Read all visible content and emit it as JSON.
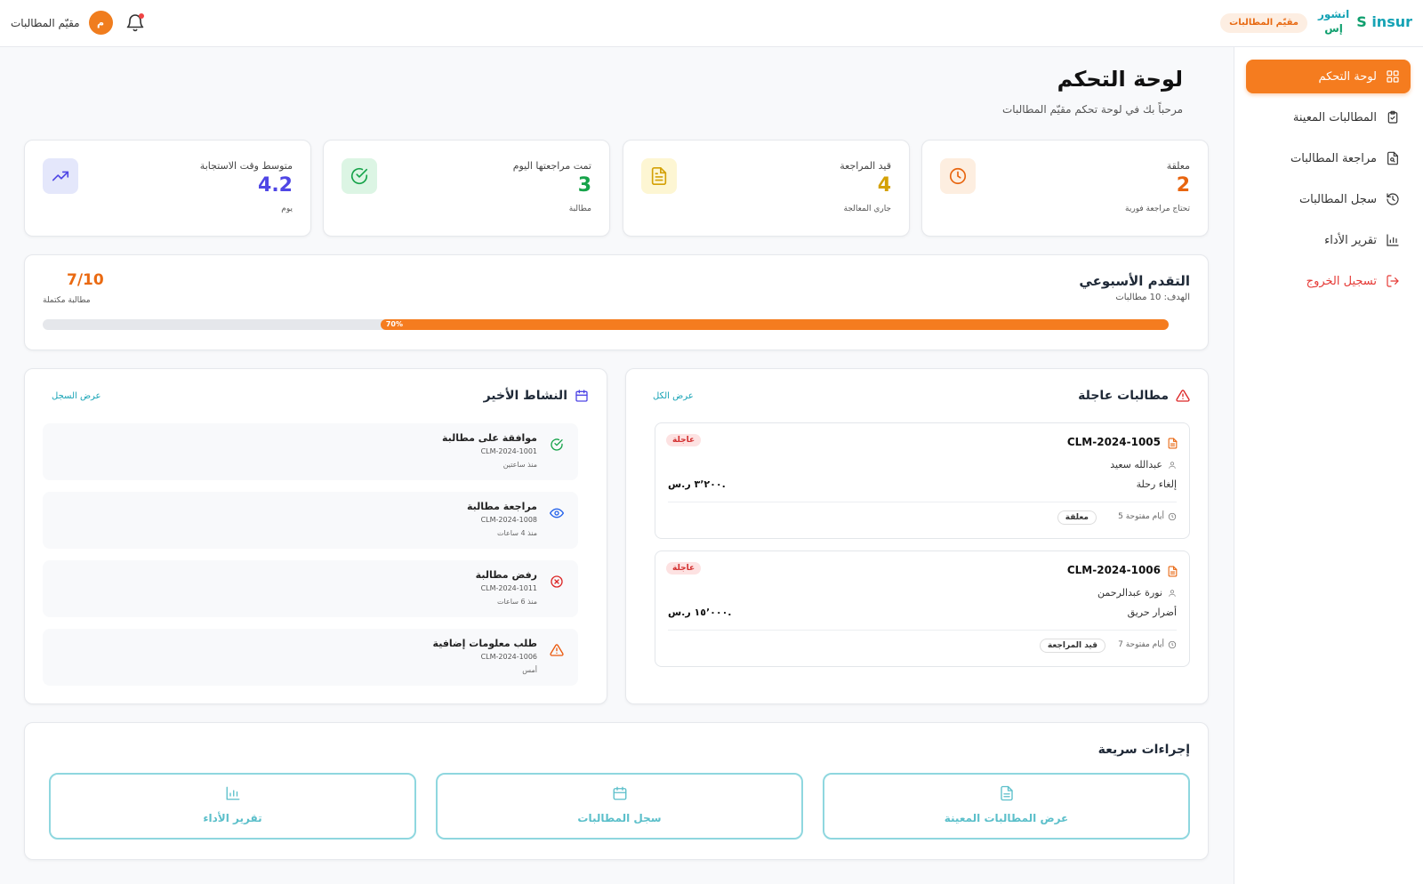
{
  "header": {
    "brand_name": "insur",
    "brand_letter": "S",
    "brand_ar_line1": "انشور",
    "brand_ar_line2": "إس",
    "role_badge": "مقيّم المطالبات",
    "user_name": "مقيّم المطالبات",
    "avatar_initial": "م"
  },
  "sidebar": {
    "items": [
      {
        "label": "لوحة التحكم",
        "icon": "grid-icon"
      },
      {
        "label": "المطالبات المعينة",
        "icon": "clipboard-check-icon"
      },
      {
        "label": "مراجعة المطالبات",
        "icon": "file-search-icon"
      },
      {
        "label": "سجل المطالبات",
        "icon": "history-icon"
      },
      {
        "label": "تقرير الأداء",
        "icon": "bar-chart-icon"
      },
      {
        "label": "تسجيل الخروج",
        "icon": "logout-icon"
      }
    ]
  },
  "page": {
    "title": "لوحة التحكم",
    "subtitle": "مرحباً بك في لوحة تحكم مقيّم المطالبات"
  },
  "stats": [
    {
      "label": "معلقة",
      "value": "2",
      "sub": "تحتاج مراجعة فورية",
      "color": "#e8650f",
      "icon": "clock-icon"
    },
    {
      "label": "قيد المراجعة",
      "value": "4",
      "sub": "جاري المعالجة",
      "color": "#d4a106",
      "icon": "document-icon"
    },
    {
      "label": "تمت مراجعتها اليوم",
      "value": "3",
      "sub": "مطالبة",
      "color": "#16a34a",
      "icon": "check-circle-icon"
    },
    {
      "label": "متوسط وقت الاستجابة",
      "value": "4.2",
      "sub": "يوم",
      "color": "#4f46e5",
      "icon": "trending-up-icon"
    }
  ],
  "weekly": {
    "title": "التقدم الأسبوعي",
    "goal": "الهدف: 10 مطالبات",
    "count": "7/10",
    "count_label": "مطالبة مكتملة",
    "progress_label": "70%",
    "progress_percent": 70
  },
  "urgent": {
    "title": "مطالبات عاجلة",
    "view_all": "عرض الكل",
    "claims": [
      {
        "id": "CLM-2024-1005",
        "badge": "عاجلة",
        "person": "عبدالله سعيد",
        "type": "إلغاء رحلة",
        "amount": "٣٬٢٠٠ ر.س.",
        "days": "5 أيام مفتوحة",
        "status": "معلقة"
      },
      {
        "id": "CLM-2024-1006",
        "badge": "عاجلة",
        "person": "نورة عبدالرحمن",
        "type": "أضرار حريق",
        "amount": "١٥٬٠٠٠ ر.س.",
        "days": "7 أيام مفتوحة",
        "status": "قيد المراجعة"
      }
    ]
  },
  "activity": {
    "title": "النشاط الأخير",
    "view_log": "عرض السجل",
    "items": [
      {
        "title": "موافقة على مطالبة",
        "id": "CLM-2024-1001",
        "time": "منذ ساعتين",
        "icon": "check-circle-icon",
        "color": "#16a34a"
      },
      {
        "title": "مراجعة مطالبة",
        "id": "CLM-2024-1008",
        "time": "منذ 4 ساعات",
        "icon": "eye-icon",
        "color": "#2563eb"
      },
      {
        "title": "رفض مطالبة",
        "id": "CLM-2024-1011",
        "time": "منذ 6 ساعات",
        "icon": "x-circle-icon",
        "color": "#dc2626"
      },
      {
        "title": "طلب معلومات إضافية",
        "id": "CLM-2024-1006",
        "time": "أمس",
        "icon": "warning-icon",
        "color": "#ea580c"
      }
    ]
  },
  "quick_actions": {
    "title": "إجراءات سريعة",
    "items": [
      {
        "label": "عرض المطالبات المعينة",
        "icon": "document-icon"
      },
      {
        "label": "سجل المطالبات",
        "icon": "calendar-icon"
      },
      {
        "label": "تقرير الأداء",
        "icon": "bar-chart-icon"
      }
    ]
  }
}
